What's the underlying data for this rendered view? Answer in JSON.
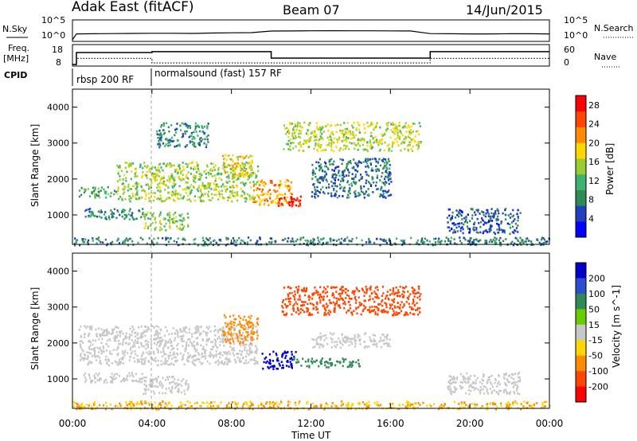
{
  "header": {
    "title": "Adak East (fitACF)",
    "beam": "Beam 07",
    "date": "14/Jun/2015"
  },
  "panels": {
    "nsky_label": "N.Sky",
    "nsky_ticks": [
      "10^5",
      "10^0"
    ],
    "nsearch_label": "N.Search",
    "nsearch_ticks": [
      "10^5",
      "10^0"
    ],
    "freq_label_1": "Freq.",
    "freq_label_2": "[MHz]",
    "freq_ticks": [
      "18",
      "8"
    ],
    "nave_label": "Nave",
    "nave_ticks": [
      "60",
      "0"
    ],
    "cpid_label": "CPID",
    "cpid_segments": [
      "rbsp 200 RF",
      "normalsound (fast) 157 RF"
    ]
  },
  "chart_data": [
    {
      "type": "line",
      "name": "noise-panel",
      "x_hours": [
        0,
        0.2,
        1,
        2,
        3,
        4,
        5,
        6,
        7,
        8,
        9,
        10,
        11,
        12,
        13,
        14,
        15,
        16,
        17,
        18,
        19,
        20,
        21,
        22,
        23,
        24
      ],
      "series": [
        {
          "name": "N.Sky",
          "values": [
            1,
            40,
            45,
            50,
            55,
            60,
            60,
            55,
            70,
            80,
            90,
            250,
            260,
            280,
            300,
            290,
            280,
            270,
            260,
            50,
            45,
            40,
            40,
            45,
            45,
            40
          ]
        }
      ]
    },
    {
      "type": "line",
      "name": "freq-nave-panel",
      "x_hours": [
        0,
        0.2,
        4,
        10,
        18,
        24
      ],
      "series": [
        {
          "name": "Freq.",
          "values": [
            8,
            14.5,
            15,
            11.5,
            15,
            15
          ]
        },
        {
          "name": "Nave",
          "values": [
            0,
            20,
            5,
            5,
            20,
            20
          ]
        }
      ]
    },
    {
      "type": "heatmap",
      "name": "power",
      "xlabel": "Time UT",
      "ylabel": "Slant Range [km]",
      "xlim": [
        0,
        24
      ],
      "ylim": [
        180,
        4500
      ],
      "x_ticks": [
        "00:00",
        "04:00",
        "08:00",
        "12:00",
        "16:00",
        "20:00",
        "00:00"
      ],
      "y_ticks": [
        1000,
        2000,
        3000,
        4000
      ],
      "colorbar_label": "Power [dB]",
      "colorbar_ticks": [
        4,
        8,
        12,
        16,
        20,
        24,
        28
      ],
      "colorbar_range": [
        0,
        30
      ],
      "colors": [
        "#0000ff",
        "#1f3fbf",
        "#2e8b57",
        "#3cb371",
        "#9acd32",
        "#ffd700",
        "#ff8c00",
        "#ff4500",
        "#ff0000"
      ],
      "regions": [
        {
          "t": [
            0.3,
            2.2
          ],
          "r": [
            1500,
            1800
          ],
          "value": 11
        },
        {
          "t": [
            2.2,
            9.3
          ],
          "r": [
            1400,
            2500
          ],
          "value": 15
        },
        {
          "t": [
            7.5,
            9.0
          ],
          "r": [
            2100,
            2700
          ],
          "value": 18
        },
        {
          "t": [
            9.0,
            11.0
          ],
          "r": [
            1300,
            2000
          ],
          "value": 21
        },
        {
          "t": [
            10.3,
            11.5
          ],
          "r": [
            1250,
            1550
          ],
          "value": 27
        },
        {
          "t": [
            12.0,
            16.0
          ],
          "r": [
            1500,
            2600
          ],
          "value": 7
        },
        {
          "t": [
            0.5,
            3.5
          ],
          "r": [
            900,
            1200
          ],
          "value": 9
        },
        {
          "t": [
            3.5,
            5.8
          ],
          "r": [
            600,
            1100
          ],
          "value": 14
        },
        {
          "t": [
            4.2,
            6.8
          ],
          "r": [
            2900,
            3600
          ],
          "value": 9
        },
        {
          "t": [
            10.5,
            17.5
          ],
          "r": [
            2800,
            3600
          ],
          "value": 16
        },
        {
          "t": [
            18.8,
            22.5
          ],
          "r": [
            500,
            1200
          ],
          "value": 6
        },
        {
          "t": [
            0,
            24
          ],
          "r": [
            180,
            400
          ],
          "value": 8
        }
      ]
    },
    {
      "type": "heatmap",
      "name": "velocity",
      "xlabel": "Time UT",
      "ylabel": "Slant Range [km]",
      "xlim": [
        0,
        24
      ],
      "ylim": [
        180,
        4500
      ],
      "x_ticks": [
        "00:00",
        "04:00",
        "08:00",
        "12:00",
        "16:00",
        "20:00",
        "00:00"
      ],
      "y_ticks": [
        1000,
        2000,
        3000,
        4000
      ],
      "colorbar_label": "Velocity [m s^-1]",
      "colorbar_ticks": [
        "200",
        "100",
        "50",
        "15",
        "-15",
        "-50",
        "-100",
        "-200"
      ],
      "colors": [
        "#0000cd",
        "#2a4fd0",
        "#2e8b57",
        "#66cd00",
        "#c8c8c8",
        "#ffd700",
        "#ff8c00",
        "#ff4500",
        "#ff0000"
      ],
      "regions": [
        {
          "t": [
            0.3,
            9.3
          ],
          "r": [
            1400,
            2500
          ],
          "value": 0
        },
        {
          "t": [
            7.5,
            9.3
          ],
          "r": [
            2000,
            2800
          ],
          "value": -40
        },
        {
          "t": [
            9.5,
            11.2
          ],
          "r": [
            1300,
            1800
          ],
          "value": 180
        },
        {
          "t": [
            11.0,
            14.5
          ],
          "r": [
            1350,
            1600
          ],
          "value": 60
        },
        {
          "t": [
            12.0,
            16.0
          ],
          "r": [
            1900,
            2300
          ],
          "value": 5
        },
        {
          "t": [
            0.5,
            3.5
          ],
          "r": [
            900,
            1200
          ],
          "value": 0
        },
        {
          "t": [
            3.5,
            5.8
          ],
          "r": [
            600,
            1100
          ],
          "value": 0
        },
        {
          "t": [
            10.5,
            17.5
          ],
          "r": [
            2800,
            3600
          ],
          "value": -120
        },
        {
          "t": [
            18.8,
            22.5
          ],
          "r": [
            600,
            1200
          ],
          "value": 0
        },
        {
          "t": [
            0,
            24
          ],
          "r": [
            180,
            400
          ],
          "value": -30
        }
      ]
    }
  ]
}
